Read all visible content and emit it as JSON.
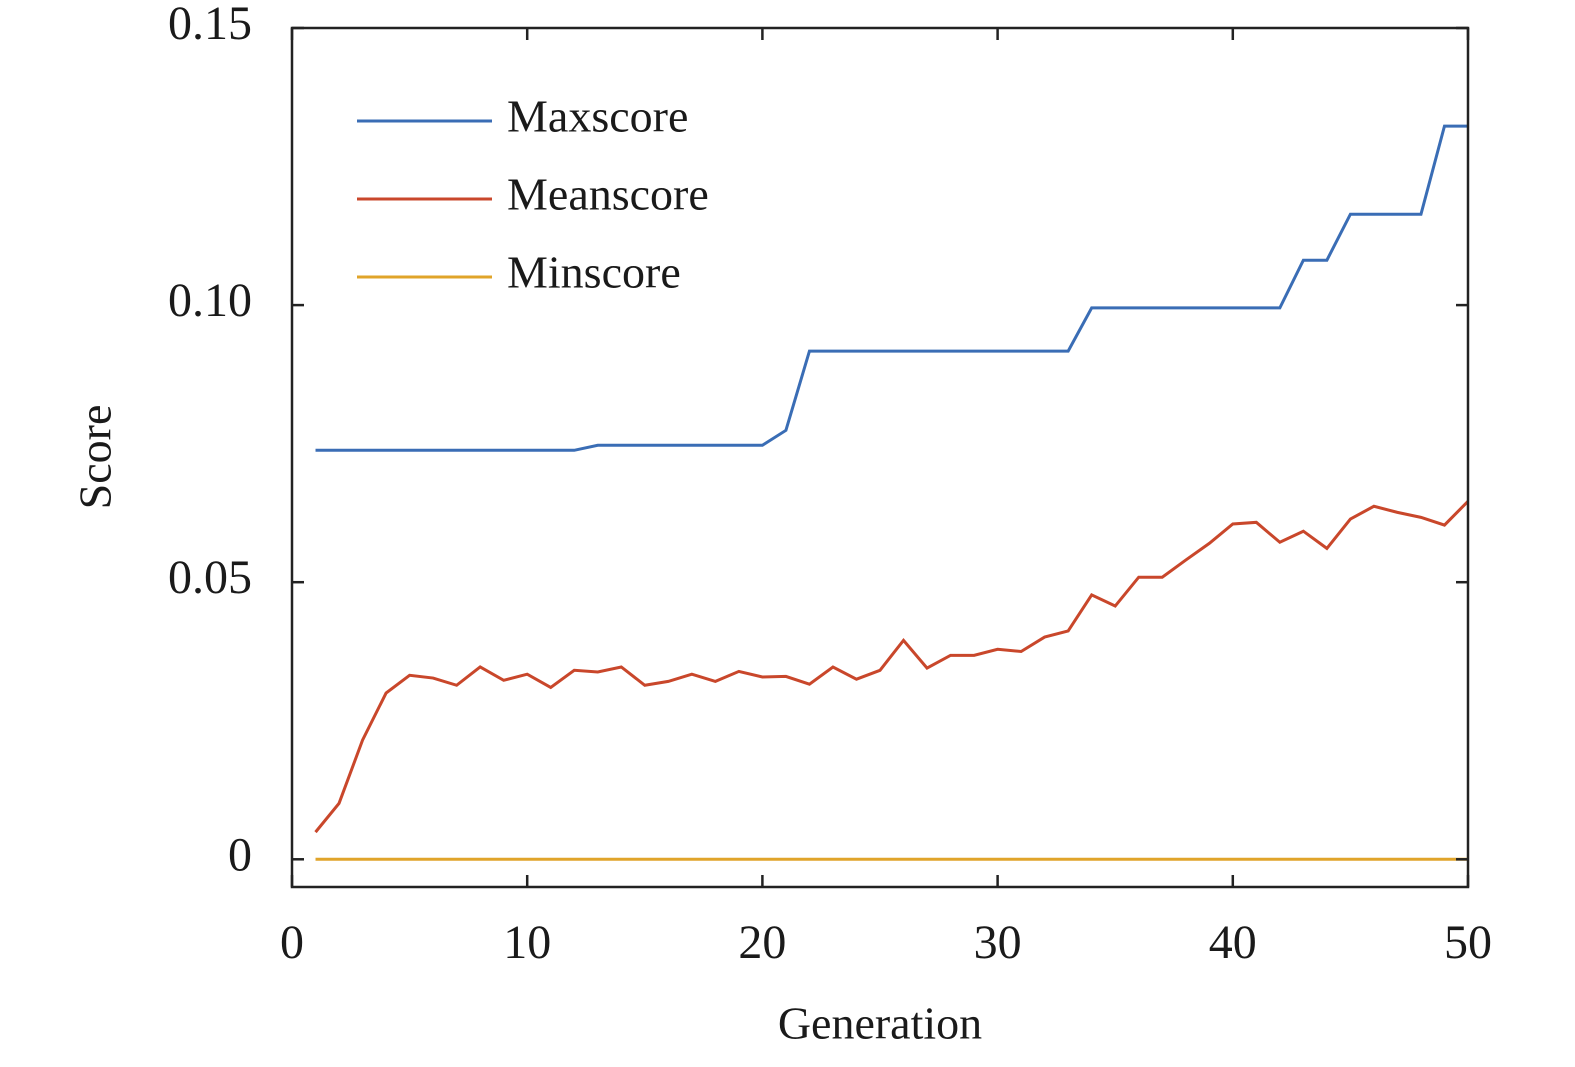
{
  "chart_data": {
    "type": "line",
    "x_label": "Generation",
    "y_label": "Score",
    "x": [
      1,
      2,
      3,
      4,
      5,
      6,
      7,
      8,
      9,
      10,
      11,
      12,
      13,
      14,
      15,
      16,
      17,
      18,
      19,
      20,
      21,
      22,
      23,
      24,
      25,
      26,
      27,
      28,
      29,
      30,
      31,
      32,
      33,
      34,
      35,
      36,
      37,
      38,
      39,
      40,
      41,
      42,
      43,
      44,
      45,
      46,
      47,
      48,
      49,
      50
    ],
    "series": [
      {
        "name": "Maxscore",
        "color": "#3a6db5",
        "values": [
          0.0738,
          0.0738,
          0.0738,
          0.0738,
          0.0738,
          0.0738,
          0.0738,
          0.0738,
          0.0738,
          0.0738,
          0.0738,
          0.0738,
          0.0747,
          0.0747,
          0.0747,
          0.0747,
          0.0747,
          0.0747,
          0.0747,
          0.0747,
          0.0774,
          0.0917,
          0.0917,
          0.0917,
          0.0917,
          0.0917,
          0.0917,
          0.0917,
          0.0917,
          0.0917,
          0.0917,
          0.0917,
          0.0917,
          0.0995,
          0.0995,
          0.0995,
          0.0995,
          0.0995,
          0.0995,
          0.0995,
          0.0995,
          0.0995,
          0.1081,
          0.1081,
          0.1164,
          0.1164,
          0.1164,
          0.1164,
          0.1323,
          0.1323
        ]
      },
      {
        "name": "Meanscore",
        "color": "#c9472b",
        "values": [
          0.0049,
          0.0101,
          0.0215,
          0.03,
          0.0332,
          0.0327,
          0.0314,
          0.0347,
          0.0323,
          0.0334,
          0.031,
          0.0341,
          0.0338,
          0.0347,
          0.0314,
          0.0321,
          0.0334,
          0.0321,
          0.0339,
          0.0329,
          0.033,
          0.0316,
          0.0347,
          0.0325,
          0.0341,
          0.0395,
          0.0345,
          0.0368,
          0.0368,
          0.0379,
          0.0375,
          0.0401,
          0.0412,
          0.0477,
          0.0457,
          0.0509,
          0.0509,
          0.054,
          0.057,
          0.0605,
          0.0608,
          0.0572,
          0.0592,
          0.0561,
          0.0614,
          0.0637,
          0.0626,
          0.0617,
          0.0603,
          0.0646
        ]
      },
      {
        "name": "Minscore",
        "color": "#e0a42a",
        "values": [
          0,
          0,
          0,
          0,
          0,
          0,
          0,
          0,
          0,
          0,
          0,
          0,
          0,
          0,
          0,
          0,
          0,
          0,
          0,
          0,
          0,
          0,
          0,
          0,
          0,
          0,
          0,
          0,
          0,
          0,
          0,
          0,
          0,
          0,
          0,
          0,
          0,
          0,
          0,
          0,
          0,
          0,
          0,
          0,
          0,
          0,
          0,
          0,
          0,
          0
        ]
      }
    ],
    "xlim": [
      0,
      50
    ],
    "xticks": [
      0,
      10,
      20,
      30,
      40,
      50
    ],
    "ylim": [
      -0.005,
      0.15
    ],
    "yticks": [
      0,
      0.05,
      {
        "value": 0.1,
        "label": "0.10"
      },
      0.15
    ],
    "grid": false,
    "legend": "upper left"
  }
}
